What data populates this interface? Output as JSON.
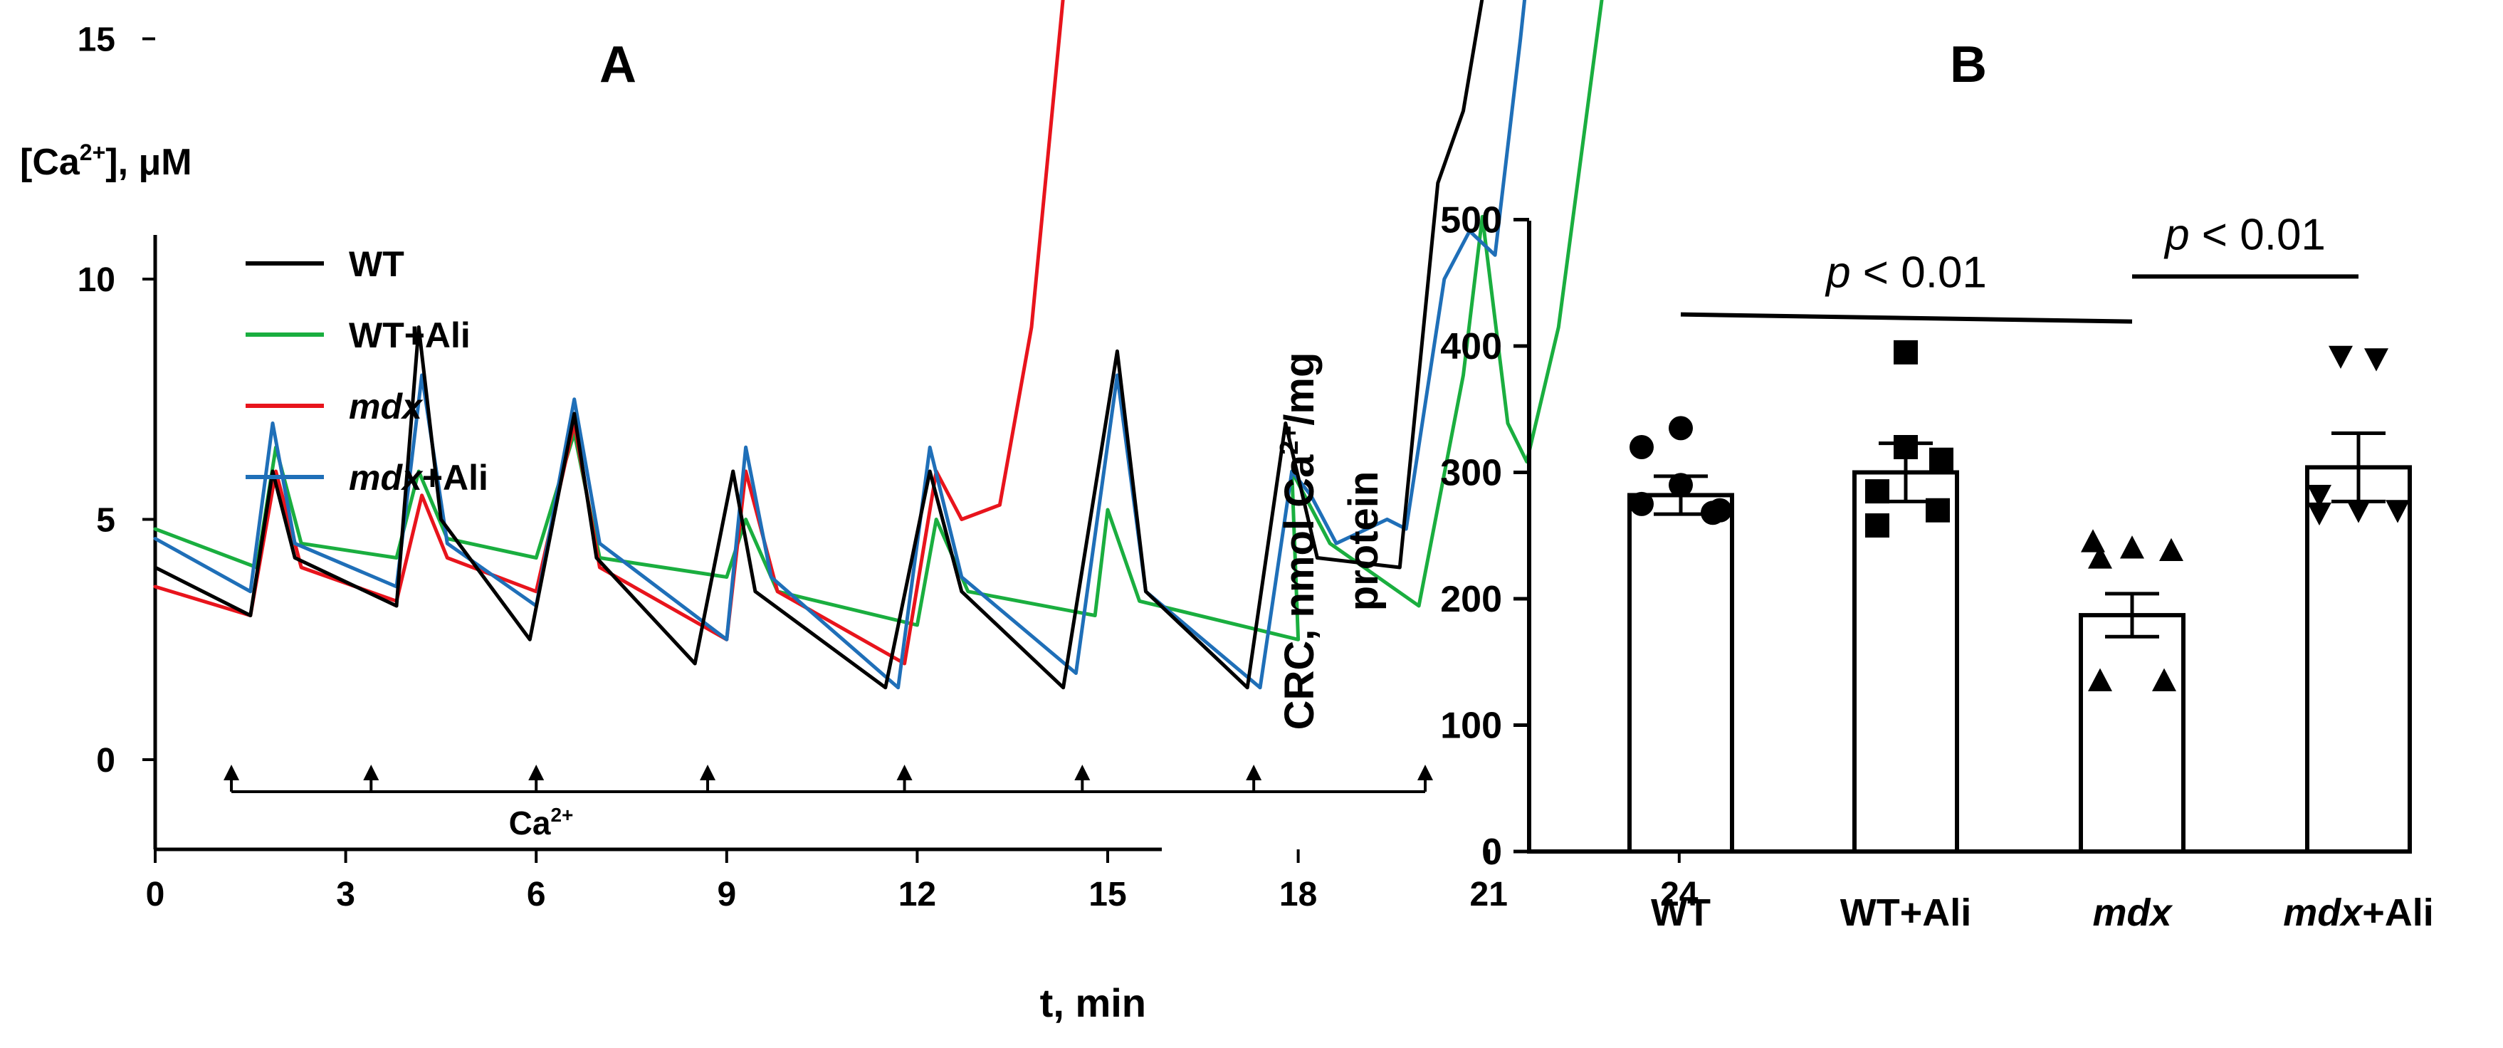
{
  "panel_a": {
    "letter": "A",
    "ylabel_main": "[Ca",
    "ylabel_sup": "2+",
    "ylabel_unit": "], μM",
    "xlabel": "t, min"
  },
  "panel_b": {
    "letter": "B"
  },
  "chart_data": [
    {
      "type": "line",
      "title": "A",
      "ylabel": "[Ca2+], μM",
      "xlabel": "t, min",
      "xlim": [
        0,
        26
      ],
      "ylim": [
        -6,
        32
      ],
      "xticks": [
        0,
        3,
        6,
        9,
        12,
        15,
        18,
        21,
        24
      ],
      "yticks": [
        0,
        5,
        10,
        15,
        20,
        25,
        30
      ],
      "legend": [
        {
          "name": "WT",
          "color": "#000000",
          "italic": false,
          "suffix": ""
        },
        {
          "name": "WT+Ali",
          "color": "#1aae3f",
          "italic": false,
          "suffix": ""
        },
        {
          "name": "mdx",
          "color": "#e8141c",
          "italic": true,
          "suffix": ""
        },
        {
          "name": "mdx",
          "color": "#1f6fb8",
          "italic": true,
          "suffix": "+Ali"
        }
      ],
      "legend_position": "top-left",
      "ca_additions": {
        "label_main": "Ca",
        "label_sup": "2+",
        "times": [
          1.2,
          3.4,
          6.0,
          8.7,
          11.8,
          14.6,
          17.3,
          20.0
        ]
      },
      "series": [
        {
          "name": "WT",
          "color": "#000000",
          "points": [
            [
              0,
              4
            ],
            [
              1.5,
              3
            ],
            [
              1.85,
              6
            ],
            [
              2.2,
              4.2
            ],
            [
              3.8,
              3.2
            ],
            [
              4.15,
              9
            ],
            [
              4.5,
              5
            ],
            [
              5.9,
              2.5
            ],
            [
              6.6,
              7.2
            ],
            [
              6.95,
              4.2
            ],
            [
              8.5,
              2
            ],
            [
              9.1,
              6
            ],
            [
              9.45,
              3.5
            ],
            [
              11.5,
              1.5
            ],
            [
              12.2,
              6
            ],
            [
              12.7,
              3.5
            ],
            [
              14.3,
              1.5
            ],
            [
              15.15,
              8.5
            ],
            [
              15.6,
              3.5
            ],
            [
              16.8,
              2
            ],
            [
              17.2,
              1.5
            ],
            [
              17.8,
              7
            ],
            [
              18.3,
              4.2
            ],
            [
              19.6,
              4
            ],
            [
              20.2,
              12
            ],
            [
              20.6,
              13.5
            ],
            [
              21.3,
              19
            ],
            [
              22.0,
              23
            ],
            [
              22.5,
              23.5
            ],
            [
              23.0,
              23.4
            ],
            [
              24.0,
              23.3
            ]
          ]
        },
        {
          "name": "WT+Ali",
          "color": "#1aae3f",
          "points": [
            [
              0,
              4.8
            ],
            [
              1.6,
              4
            ],
            [
              1.9,
              6.5
            ],
            [
              2.3,
              4.5
            ],
            [
              3.8,
              4.2
            ],
            [
              4.15,
              6
            ],
            [
              4.6,
              4.6
            ],
            [
              6.0,
              4.2
            ],
            [
              6.6,
              6.8
            ],
            [
              7.0,
              4.2
            ],
            [
              9.0,
              3.8
            ],
            [
              9.3,
              5
            ],
            [
              9.8,
              3.5
            ],
            [
              12.0,
              2.8
            ],
            [
              12.3,
              5
            ],
            [
              12.8,
              3.5
            ],
            [
              14.8,
              3
            ],
            [
              15.0,
              5.2
            ],
            [
              15.5,
              3.3
            ],
            [
              18.0,
              2.5
            ],
            [
              17.9,
              6
            ],
            [
              18.5,
              4.5
            ],
            [
              19.9,
              3.2
            ],
            [
              20.6,
              8
            ],
            [
              20.9,
              11.3
            ],
            [
              21.3,
              7
            ],
            [
              21.6,
              6.2
            ],
            [
              22.1,
              9
            ],
            [
              22.6,
              14
            ],
            [
              23.1,
              19
            ],
            [
              23.4,
              23
            ],
            [
              23.8,
              23.8
            ],
            [
              24.5,
              24
            ],
            [
              25.0,
              23.9
            ],
            [
              25.6,
              23.8
            ]
          ]
        },
        {
          "name": "mdx",
          "color": "#e8141c",
          "points": [
            [
              0,
              3.6
            ],
            [
              1.5,
              3
            ],
            [
              1.9,
              6
            ],
            [
              2.3,
              4
            ],
            [
              3.8,
              3.3
            ],
            [
              4.2,
              5.5
            ],
            [
              4.6,
              4.2
            ],
            [
              6.0,
              3.5
            ],
            [
              6.6,
              7
            ],
            [
              7.0,
              4
            ],
            [
              9.0,
              2.5
            ],
            [
              9.3,
              6
            ],
            [
              9.8,
              3.5
            ],
            [
              11.8,
              2
            ],
            [
              12.3,
              6
            ],
            [
              12.7,
              5
            ],
            [
              13.3,
              5.3
            ],
            [
              13.8,
              9
            ],
            [
              14.2,
              14.5
            ],
            [
              14.6,
              20
            ],
            [
              15.0,
              23.5
            ],
            [
              15.5,
              25
            ],
            [
              16.2,
              25.2
            ],
            [
              17.0,
              25
            ],
            [
              17.4,
              25.1
            ],
            [
              17.8,
              24.9
            ]
          ]
        },
        {
          "name": "mdx+Ali",
          "color": "#1f6fb8",
          "points": [
            [
              0,
              4.6
            ],
            [
              1.5,
              3.5
            ],
            [
              1.85,
              7
            ],
            [
              2.2,
              4.5
            ],
            [
              3.8,
              3.6
            ],
            [
              4.2,
              8
            ],
            [
              4.6,
              4.5
            ],
            [
              6.0,
              3.2
            ],
            [
              6.6,
              7.5
            ],
            [
              7.0,
              4.5
            ],
            [
              9.0,
              2.5
            ],
            [
              9.3,
              6.5
            ],
            [
              9.7,
              3.8
            ],
            [
              11.7,
              1.5
            ],
            [
              12.2,
              6.5
            ],
            [
              12.7,
              3.8
            ],
            [
              14.5,
              1.8
            ],
            [
              15.15,
              8
            ],
            [
              15.6,
              3.5
            ],
            [
              17.4,
              1.5
            ],
            [
              17.9,
              6
            ],
            [
              18.2,
              5.5
            ],
            [
              18.6,
              4.5
            ],
            [
              19.4,
              5
            ],
            [
              19.7,
              4.8
            ],
            [
              20.3,
              10
            ],
            [
              20.7,
              11
            ],
            [
              21.1,
              10.5
            ],
            [
              21.5,
              15
            ],
            [
              21.9,
              20
            ],
            [
              22.4,
              22.7
            ],
            [
              23.0,
              23.2
            ],
            [
              23.5,
              23.4
            ]
          ]
        }
      ]
    },
    {
      "type": "bar",
      "title": "B",
      "ylabel": "CRC, nmol Ca2+/mg protein",
      "ylabel_parts": {
        "line1_pre": "CRC, nmol Ca",
        "line1_sup": "2+",
        "line1_post": "/mg",
        "line2": "protein"
      },
      "ylim": [
        0,
        500
      ],
      "yticks": [
        0,
        100,
        200,
        300,
        400,
        500
      ],
      "categories": [
        {
          "name": "WT",
          "italic": false,
          "suffix": ""
        },
        {
          "name": "WT+Ali",
          "italic": false,
          "suffix": ""
        },
        {
          "name": "mdx",
          "italic": true,
          "suffix": ""
        },
        {
          "name": "mdx",
          "italic": true,
          "suffix": "+Ali"
        }
      ],
      "values": [
        282,
        300,
        187,
        304
      ],
      "sem": [
        15,
        23,
        17,
        27
      ],
      "markers": [
        "circle",
        "square",
        "triangle-up",
        "triangle-down"
      ],
      "points": [
        [
          335,
          320,
          290,
          275,
          268,
          270
        ],
        [
          395,
          320,
          310,
          285,
          270,
          258
        ],
        [
          245,
          240,
          238,
          232,
          135,
          135
        ],
        [
          392,
          390,
          282,
          270,
          270,
          268
        ]
      ],
      "significance": [
        {
          "from": 0,
          "to": 2,
          "label_p": "p",
          "label_rest": " < 0.01",
          "y": 425
        },
        {
          "from": 2,
          "to": 3,
          "label_p": "p",
          "label_rest": " < 0.01",
          "y": 455
        }
      ]
    }
  ]
}
